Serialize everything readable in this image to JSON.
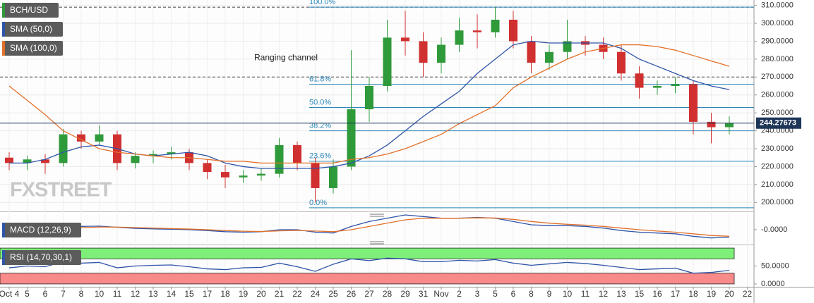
{
  "chart_data": [
    {
      "type": "candlestick",
      "symbol": "BCH/USD",
      "watermark": "FXSTREET",
      "categories": [
        "Oct 4",
        "5",
        "6",
        "7",
        "8",
        "10",
        "11",
        "12",
        "13",
        "14",
        "15",
        "17",
        "18",
        "19",
        "20",
        "21",
        "22",
        "24",
        "25",
        "26",
        "27",
        "28",
        "29",
        "31",
        "Nov",
        "2",
        "3",
        "5",
        "6",
        "8",
        "9",
        "10",
        "11",
        "12",
        "13",
        "15",
        "16",
        "17",
        "18",
        "19",
        "20",
        "22"
      ],
      "ohlc": {
        "open": [
          225,
          222,
          224,
          222,
          238,
          234,
          238,
          222,
          226,
          227,
          228,
          222,
          217,
          214,
          215,
          216,
          232,
          222,
          208,
          220,
          252,
          265,
          292,
          290,
          278,
          288,
          296,
          295,
          302,
          290,
          278,
          284,
          290,
          288,
          284,
          272,
          264,
          265,
          266,
          245,
          242,
          null
        ],
        "high": [
          228,
          226,
          227,
          241,
          240,
          243,
          240,
          228,
          229,
          231,
          230,
          224,
          221,
          218,
          219,
          236,
          234,
          225,
          224,
          285,
          270,
          302,
          307,
          295,
          292,
          303,
          305,
          309,
          307,
          293,
          288,
          302,
          293,
          292,
          288,
          276,
          268,
          270,
          268,
          250,
          248,
          null
        ],
        "low": [
          218,
          218,
          216,
          220,
          230,
          232,
          218,
          219,
          222,
          224,
          218,
          213,
          208,
          211,
          212,
          214,
          218,
          200,
          205,
          218,
          245,
          262,
          282,
          270,
          272,
          284,
          286,
          292,
          286,
          272,
          274,
          280,
          282,
          280,
          268,
          258,
          260,
          261,
          238,
          233,
          238,
          null
        ],
        "close": [
          222,
          224,
          222,
          238,
          234,
          238,
          222,
          226,
          227,
          228,
          222,
          217,
          214,
          215,
          216,
          232,
          222,
          208,
          220,
          252,
          265,
          292,
          290,
          278,
          288,
          296,
          295,
          302,
          290,
          278,
          284,
          290,
          288,
          284,
          272,
          264,
          265,
          266,
          245,
          242,
          244.27673,
          null
        ],
        "up_color": "#2f9a3a",
        "down_color": "#d03030"
      },
      "series": [
        {
          "name": "SMA (50,0)",
          "color": "#2f55a8",
          "values": [
            222,
            222,
            224,
            228,
            231,
            232,
            230,
            227,
            226,
            227,
            228,
            226,
            222,
            220,
            219,
            219,
            219,
            219,
            220,
            222,
            226,
            232,
            240,
            248,
            255,
            262,
            272,
            280,
            288,
            290,
            289,
            289,
            289,
            289,
            286,
            280,
            276,
            272,
            268,
            265,
            263,
            null
          ]
        },
        {
          "name": "SMA (100,0)",
          "color": "#e2702a",
          "values": [
            265,
            257,
            249,
            240,
            235,
            230,
            228,
            227,
            226,
            225,
            225,
            224,
            223,
            223,
            222,
            222,
            222,
            222,
            222,
            224,
            225,
            227,
            230,
            234,
            238,
            244,
            249,
            254,
            264,
            270,
            275,
            280,
            284,
            286,
            288,
            288,
            287,
            285,
            282,
            279,
            276,
            null
          ]
        }
      ],
      "fibonacci": {
        "color": "#2a86b8",
        "levels": [
          {
            "label": "100.0%",
            "price": 309
          },
          {
            "label": "61.8%",
            "price": 266
          },
          {
            "label": "50.0%",
            "price": 253
          },
          {
            "label": "38.2%",
            "price": 240
          },
          {
            "label": "23.6%",
            "price": 223
          },
          {
            "label": "0.0%",
            "price": 197
          }
        ]
      },
      "range_channel": {
        "label": "Ranging channel",
        "upper": 309,
        "lower": 270
      },
      "ylim": [
        195,
        313
      ],
      "yticks": [
        {
          "value": 200,
          "label": "200.0000"
        },
        {
          "value": 210,
          "label": "210.0000"
        },
        {
          "value": 220,
          "label": "220.0000"
        },
        {
          "value": 230,
          "label": "230.0000"
        },
        {
          "value": 240,
          "label": "240.0000"
        },
        {
          "value": 250,
          "label": "250.0000"
        },
        {
          "value": 260,
          "label": "260.0000"
        },
        {
          "value": 270,
          "label": "270.0000"
        },
        {
          "value": 280,
          "label": "280.0000"
        },
        {
          "value": 290,
          "label": "290.0000"
        },
        {
          "value": 300,
          "label": "300.0000"
        },
        {
          "value": 310,
          "label": "310.0000"
        }
      ],
      "grid": true
    },
    {
      "type": "line",
      "title": "MACD (12,26,9)",
      "series": [
        {
          "color": "#2f55a8",
          "values": [
            0.5,
            0.3,
            0.5,
            1.5,
            2,
            2.2,
            1.5,
            0.8,
            0.5,
            0.3,
            0,
            -0.5,
            -1.2,
            -1.5,
            -1.2,
            0,
            0,
            -1.5,
            -2,
            2,
            5,
            7,
            9,
            8,
            7,
            7,
            7.5,
            7,
            5,
            3,
            2.5,
            2.5,
            2,
            1,
            -0.5,
            -1.5,
            -2,
            -2.5,
            -4,
            -5,
            -4.5,
            null
          ]
        },
        {
          "color": "#e2702a",
          "values": [
            0.3,
            0.3,
            0.4,
            0.8,
            1.2,
            1.6,
            1.6,
            1.3,
            1,
            0.7,
            0.4,
            0,
            -0.5,
            -0.9,
            -1.1,
            -0.7,
            -0.4,
            -0.8,
            -1.2,
            0,
            2,
            4,
            6,
            7,
            7,
            7,
            7.2,
            7.1,
            6.3,
            5,
            4,
            3.3,
            2.8,
            2,
            1,
            0,
            -0.8,
            -1.5,
            -2.5,
            -3.5,
            -4,
            null
          ]
        }
      ],
      "ylim": [
        -9,
        9
      ],
      "yticks": [
        {
          "value": 0,
          "label": "-0.0000"
        }
      ]
    },
    {
      "type": "line",
      "title": "RSI (14,70,30,1)",
      "series": [
        {
          "color": "#2f55a8",
          "values": [
            45,
            50,
            48,
            62,
            58,
            60,
            45,
            50,
            52,
            53,
            48,
            42,
            40,
            45,
            46,
            58,
            48,
            35,
            55,
            70,
            65,
            72,
            70,
            62,
            62,
            66,
            64,
            68,
            58,
            52,
            56,
            60,
            57,
            52,
            46,
            40,
            42,
            44,
            30,
            32,
            38,
            null
          ]
        }
      ],
      "bands": [
        {
          "from": 70,
          "to": 100,
          "color": "#7ef07a"
        },
        {
          "from": 0,
          "to": 30,
          "color": "#f88a8a"
        }
      ],
      "ylim": [
        -8,
        108
      ],
      "yticks": [
        {
          "value": 50,
          "label": "50.0000"
        },
        {
          "value": 0,
          "label": "0.0000"
        }
      ]
    }
  ]
}
